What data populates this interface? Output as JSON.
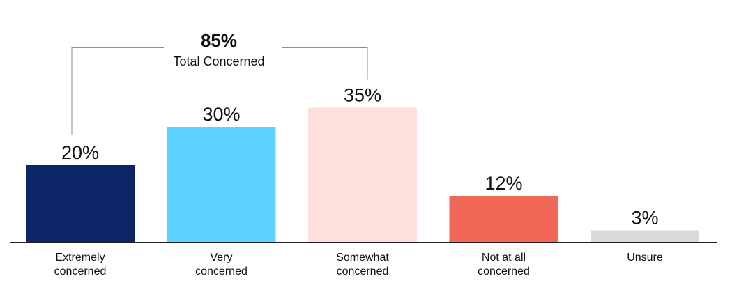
{
  "chart_data": {
    "type": "bar",
    "categories": [
      [
        "Extremely",
        "concerned"
      ],
      [
        "Very",
        "concerned"
      ],
      [
        "Somewhat",
        "concerned"
      ],
      [
        "Not at all",
        "concerned"
      ],
      [
        "Unsure"
      ]
    ],
    "values": [
      20,
      30,
      35,
      12,
      3
    ],
    "value_labels": [
      "20%",
      "30%",
      "35%",
      "12%",
      "3%"
    ],
    "colors": [
      "#0b2566",
      "#5bd2ff",
      "#fde0dc",
      "#f26856",
      "#d9d9d9"
    ],
    "ylim": [
      0,
      40
    ],
    "grid": false,
    "bracket": {
      "value": "85%",
      "label": "Total Concerned",
      "spans": [
        0,
        2
      ]
    }
  }
}
